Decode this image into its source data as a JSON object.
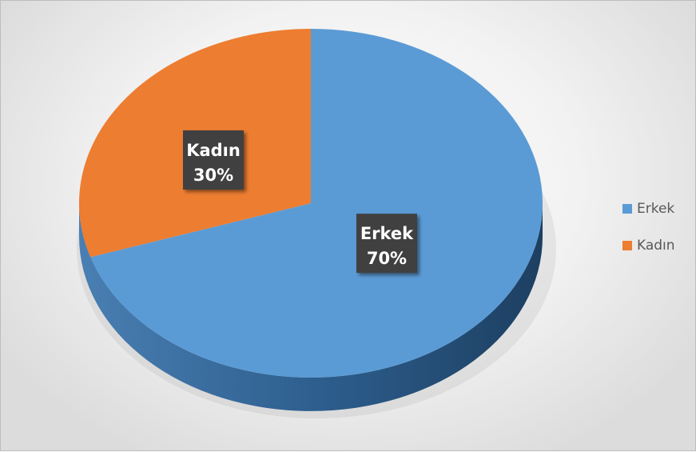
{
  "chart_data": {
    "type": "pie",
    "title": "",
    "categories": [
      "Erkek",
      "Kadın"
    ],
    "values": [
      70,
      30
    ],
    "labels": [
      {
        "name": "Erkek",
        "percent": "70%"
      },
      {
        "name": "Kadın",
        "percent": "30%"
      }
    ],
    "colors": [
      "#5b9bd5",
      "#ed7d31"
    ],
    "legend_position": "right",
    "style": "3d"
  },
  "legend": [
    {
      "label": "Erkek",
      "color": "#5b9bd5"
    },
    {
      "label": "Kadın",
      "color": "#ed7d31"
    }
  ]
}
